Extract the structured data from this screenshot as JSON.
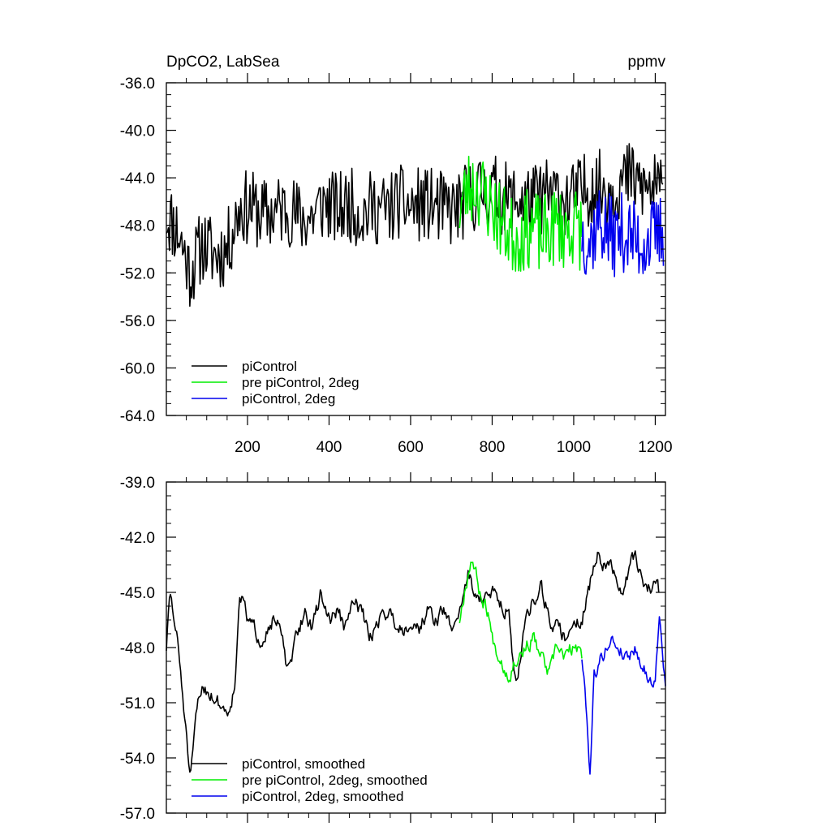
{
  "chart_data": [
    {
      "type": "line",
      "title": "DpCO2, LabSea",
      "units": "ppmv",
      "xlim": [
        1,
        1225
      ],
      "ylim": [
        -64,
        -36
      ],
      "x_tick_labels": [
        "200",
        "400",
        "600",
        "800",
        "1000",
        "1200"
      ],
      "x_tick_values": [
        200,
        400,
        600,
        800,
        1000,
        1200
      ],
      "y_tick_labels": [
        "-36.0",
        "-40.0",
        "-44.0",
        "-48.0",
        "-52.0",
        "-56.0",
        "-60.0",
        "-64.0"
      ],
      "y_tick_values": [
        -36,
        -40,
        -44,
        -48,
        -52,
        -56,
        -60,
        -64
      ],
      "legend": {
        "placement": "bottom-left",
        "entries": [
          {
            "label": "piControl",
            "color": "#000000"
          },
          {
            "label": "pre piControl, 2deg",
            "color": "#00ee00"
          },
          {
            "label": "piControl, 2deg",
            "color": "#0000ee"
          }
        ]
      },
      "series": [
        {
          "name": "piControl",
          "color": "#000000",
          "x": [
            1,
            30,
            60,
            90,
            120,
            150,
            180,
            210,
            240,
            270,
            300,
            330,
            360,
            390,
            420,
            450,
            480,
            510,
            540,
            570,
            600,
            630,
            660,
            690,
            720,
            750,
            780,
            810,
            840,
            870,
            900,
            930,
            960,
            990,
            1020,
            1050,
            1080,
            1110,
            1140,
            1170,
            1200,
            1220
          ],
          "y": [
            -47.0,
            -48.5,
            -52.0,
            -49.5,
            -50.5,
            -50.0,
            -46.5,
            -46.5,
            -47.2,
            -46.8,
            -46.5,
            -47.5,
            -47.2,
            -46.0,
            -46.8,
            -46.2,
            -47.0,
            -46.4,
            -46.8,
            -46.0,
            -46.5,
            -46.2,
            -46.4,
            -46.8,
            -46.5,
            -45.5,
            -45.0,
            -45.2,
            -46.0,
            -45.8,
            -46.0,
            -45.5,
            -45.5,
            -46.0,
            -45.2,
            -44.6,
            -45.0,
            -44.5,
            -44.0,
            -44.8,
            -45.0,
            -45.5
          ],
          "noise": 3.2,
          "seed": 11
        },
        {
          "name": "pre piControl, 2deg",
          "color": "#00ee00",
          "x": [
            720,
            740,
            760,
            780,
            800,
            820,
            840,
            860,
            880,
            900,
            920,
            940,
            960,
            980,
            1000,
            1020
          ],
          "y": [
            -46.5,
            -45.0,
            -44.5,
            -45.5,
            -46.5,
            -47.5,
            -48.5,
            -49.0,
            -48.5,
            -48.0,
            -49.0,
            -48.5,
            -48.0,
            -48.5,
            -48.0,
            -48.5
          ],
          "noise": 3.4,
          "seed": 23
        },
        {
          "name": "piControl, 2deg",
          "color": "#0000ee",
          "x": [
            1020,
            1040,
            1060,
            1080,
            1100,
            1120,
            1140,
            1160,
            1180,
            1200,
            1220
          ],
          "y": [
            -48.5,
            -49.5,
            -47.5,
            -48.5,
            -49.0,
            -48.5,
            -49.0,
            -49.5,
            -49.2,
            -49.0,
            -48.5
          ],
          "noise": 3.4,
          "seed": 37
        }
      ]
    },
    {
      "type": "line",
      "title": "",
      "xlim": [
        1,
        1225
      ],
      "ylim": [
        -57,
        -39
      ],
      "x_tick_labels": [],
      "x_tick_values": [
        200,
        400,
        600,
        800,
        1000,
        1200
      ],
      "y_tick_labels": [
        "-39.0",
        "-42.0",
        "-45.0",
        "-48.0",
        "-51.0",
        "-54.0",
        "-57.0"
      ],
      "y_tick_values": [
        -39,
        -42,
        -45,
        -48,
        -51,
        -54,
        -57
      ],
      "legend": {
        "placement": "bottom-left",
        "entries": [
          {
            "label": "piControl, smoothed",
            "color": "#000000"
          },
          {
            "label": "pre piControl, 2deg, smoothed",
            "color": "#00ee00"
          },
          {
            "label": "piControl, 2deg, smoothed",
            "color": "#0000ee"
          }
        ]
      },
      "series": [
        {
          "name": "piControl, smoothed",
          "color": "#000000",
          "x": [
            1,
            10,
            30,
            45,
            60,
            75,
            90,
            110,
            130,
            150,
            170,
            180,
            200,
            230,
            260,
            280,
            300,
            320,
            340,
            360,
            380,
            400,
            420,
            440,
            460,
            480,
            500,
            520,
            540,
            560,
            580,
            600,
            620,
            640,
            660,
            680,
            700,
            720,
            740,
            760,
            780,
            800,
            820,
            840,
            860,
            880,
            900,
            920,
            940,
            960,
            980,
            1000,
            1020,
            1040,
            1060,
            1080,
            1100,
            1120,
            1140,
            1160,
            1180,
            1200,
            1210
          ],
          "y": [
            -48.0,
            -45.0,
            -48.0,
            -51.5,
            -55.5,
            -51.5,
            -50.0,
            -50.5,
            -51.0,
            -51.5,
            -50.0,
            -44.8,
            -46.5,
            -47.5,
            -46.5,
            -47.0,
            -49.5,
            -47.5,
            -46.0,
            -47.0,
            -45.0,
            -46.5,
            -46.0,
            -47.0,
            -45.5,
            -46.0,
            -47.5,
            -46.5,
            -46.0,
            -46.5,
            -47.0,
            -46.5,
            -47.0,
            -46.0,
            -46.5,
            -46.0,
            -47.0,
            -46.0,
            -44.0,
            -45.0,
            -45.5,
            -45.0,
            -45.5,
            -46.0,
            -50.5,
            -46.5,
            -45.5,
            -44.5,
            -46.5,
            -47.0,
            -47.5,
            -46.5,
            -46.5,
            -44.5,
            -43.0,
            -43.5,
            -44.0,
            -45.5,
            -43.0,
            -43.5,
            -45.0,
            -44.5,
            -45.0
          ],
          "noise": 0.9,
          "seed": 51
        },
        {
          "name": "pre piControl, 2deg, smoothed",
          "color": "#00ee00",
          "x": [
            720,
            735,
            750,
            770,
            790,
            800,
            820,
            840,
            860,
            880,
            900,
            920,
            940,
            960,
            980,
            1000,
            1020
          ],
          "y": [
            -46.5,
            -44.5,
            -43.0,
            -45.0,
            -46.0,
            -47.5,
            -48.5,
            -49.5,
            -48.5,
            -48.0,
            -47.5,
            -48.5,
            -49.5,
            -48.0,
            -48.5,
            -48.0,
            -48.5
          ],
          "noise": 0.9,
          "seed": 67
        },
        {
          "name": "piControl, 2deg, smoothed",
          "color": "#0000ee",
          "x": [
            1020,
            1030,
            1040,
            1050,
            1070,
            1090,
            1110,
            1130,
            1150,
            1170,
            1190,
            1200,
            1210,
            1225
          ],
          "y": [
            -48.5,
            -51.0,
            -54.8,
            -49.5,
            -48.5,
            -47.5,
            -48.0,
            -48.5,
            -48.0,
            -49.0,
            -50.0,
            -49.5,
            -46.5,
            -50.0
          ],
          "noise": 0.8,
          "seed": 79
        }
      ]
    }
  ]
}
